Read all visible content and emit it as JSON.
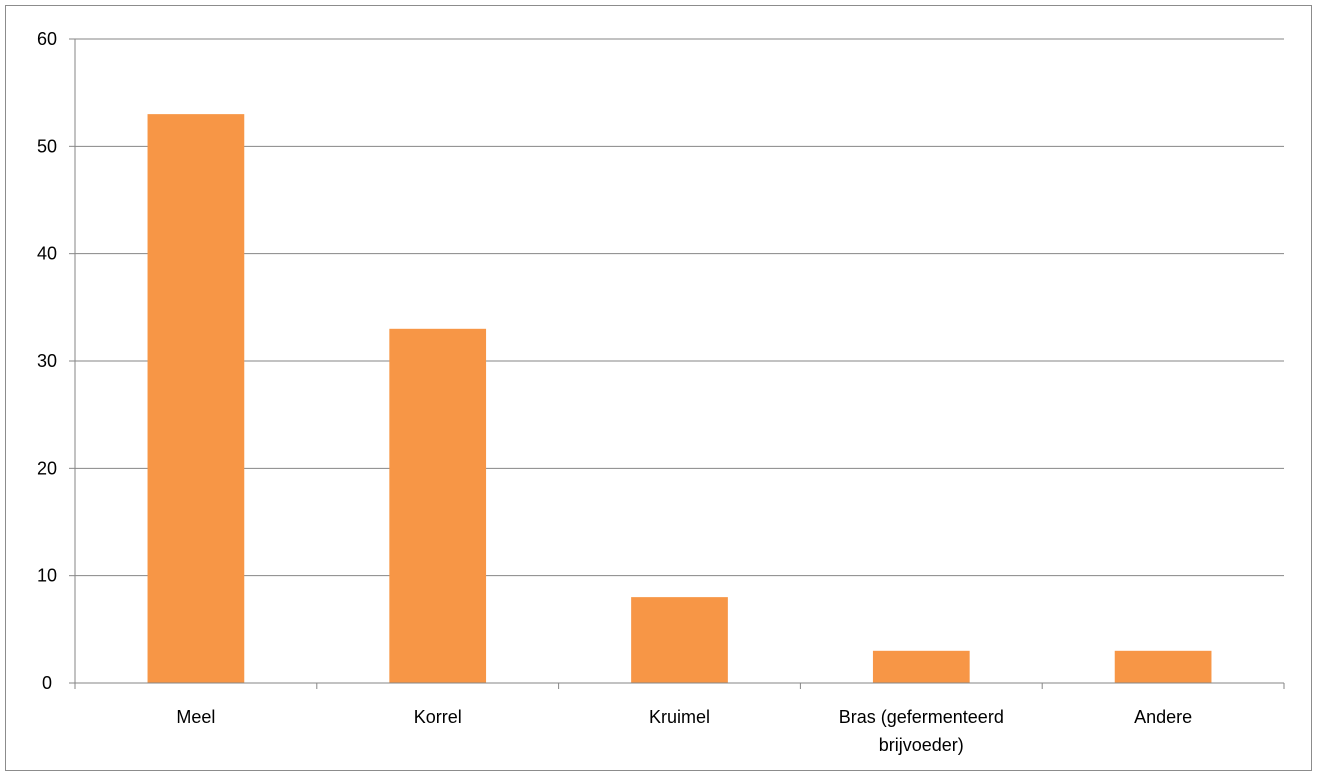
{
  "chart_data": {
    "type": "bar",
    "title": "",
    "xlabel": "",
    "ylabel": "",
    "categories": [
      "Meel",
      "Korrel",
      "Kruimel",
      "Bras (gefermenteerd brijvoeder)",
      "Andere"
    ],
    "category_label_lines": [
      [
        "Meel"
      ],
      [
        "Korrel"
      ],
      [
        "Kruimel"
      ],
      [
        "Bras (gefermenteerd",
        "brijvoeder)"
      ],
      [
        "Andere"
      ]
    ],
    "values": [
      53,
      33,
      8,
      3,
      3
    ],
    "ylim": [
      0,
      60
    ],
    "yticks": [
      0,
      10,
      20,
      30,
      40,
      50,
      60
    ],
    "grid": true,
    "legend": "none",
    "bar_color": "#F79646",
    "grid_color": "#868686",
    "axis_color": "#868686"
  }
}
